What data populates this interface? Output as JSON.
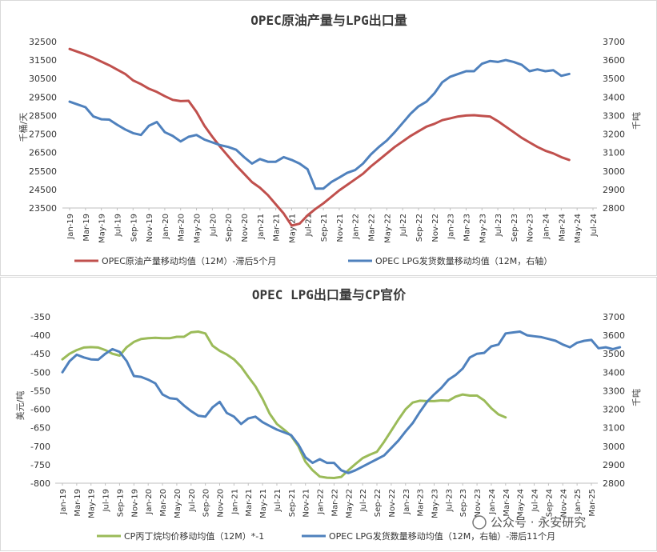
{
  "watermark": "公众号 · 永安研究",
  "chart_data": [
    {
      "type": "line",
      "title": "OPEC原油产量与LPG出口量",
      "ylabel": "千桶/天",
      "y2label": "千吨",
      "ylim": [
        23500,
        32500
      ],
      "y_ticks": [
        23500,
        24500,
        25500,
        26500,
        27500,
        28500,
        29500,
        30500,
        31500,
        32500
      ],
      "y2lim": [
        2800,
        3700
      ],
      "y2_ticks": [
        2800,
        2900,
        3000,
        3100,
        3200,
        3300,
        3400,
        3500,
        3600,
        3700
      ],
      "x_ticks": [
        "Jan-19",
        "Mar-19",
        "May-19",
        "Jul-19",
        "Sep-19",
        "Nov-19",
        "Jan-20",
        "Mar-20",
        "May-20",
        "Jul-20",
        "Sep-20",
        "Nov-20",
        "Jan-21",
        "Mar-21",
        "May-21",
        "Jul-21",
        "Sep-21",
        "Nov-21",
        "Jan-22",
        "Mar-22",
        "May-22",
        "Jul-22",
        "Sep-22",
        "Nov-22",
        "Jan-23",
        "Mar-23",
        "May-23",
        "Jul-23",
        "Sep-23",
        "Nov-23",
        "Jan-24",
        "Mar-24",
        "May-24",
        "Jul-24"
      ],
      "grid": false,
      "legend_position": "bottom",
      "series": [
        {
          "name": "OPEC原油产量移动均值（12M）-滞后5个月",
          "color": "#c0504d",
          "axis": "left",
          "start_index": 0,
          "values": [
            32100,
            31950,
            31800,
            31620,
            31420,
            31220,
            30980,
            30750,
            30400,
            30200,
            29950,
            29780,
            29550,
            29350,
            29280,
            29300,
            28700,
            27950,
            27350,
            26800,
            26300,
            25800,
            25350,
            24900,
            24600,
            24200,
            23700,
            23200,
            22550,
            22650,
            23100,
            23450,
            23750,
            24100,
            24450,
            24750,
            25050,
            25350,
            25750,
            26100,
            26450,
            26800,
            27100,
            27400,
            27650,
            27900,
            28050,
            28250,
            28350,
            28450,
            28500,
            28520,
            28480,
            28450,
            28200,
            27900,
            27600,
            27300,
            27050,
            26800,
            26600,
            26450,
            26250,
            26100
          ]
        },
        {
          "name": "OPEC LPG发货数量移动均值（12M，右轴）",
          "color": "#4f81bd",
          "axis": "right",
          "start_index": 0,
          "values": [
            3375,
            3360,
            3345,
            3295,
            3280,
            3278,
            3250,
            3225,
            3205,
            3195,
            3245,
            3265,
            3210,
            3190,
            3160,
            3185,
            3195,
            3170,
            3155,
            3140,
            3130,
            3115,
            3075,
            3040,
            3065,
            3050,
            3050,
            3075,
            3060,
            3040,
            3010,
            2905,
            2905,
            2940,
            2965,
            2990,
            3005,
            3040,
            3090,
            3130,
            3165,
            3210,
            3260,
            3310,
            3350,
            3375,
            3420,
            3480,
            3510,
            3525,
            3540,
            3540,
            3580,
            3595,
            3590,
            3600,
            3590,
            3575,
            3540,
            3550,
            3540,
            3545,
            3515,
            3525
          ]
        }
      ]
    },
    {
      "type": "line",
      "title": "OPEC LPG出口量与CP官价",
      "ylabel": "美元/吨",
      "y2label": "千吨",
      "ylim": [
        -800,
        -350
      ],
      "y_ticks": [
        -800,
        -750,
        -700,
        -650,
        -600,
        -550,
        -500,
        -450,
        -400,
        -350
      ],
      "y2lim": [
        2800,
        3700
      ],
      "y2_ticks": [
        2800,
        2900,
        3000,
        3100,
        3200,
        3300,
        3400,
        3500,
        3600,
        3700
      ],
      "x_ticks": [
        "Jan-19",
        "Mar-19",
        "May-19",
        "Jul-19",
        "Sep-19",
        "Nov-19",
        "Jan-20",
        "Mar-20",
        "May-20",
        "Jul-20",
        "Sep-20",
        "Nov-20",
        "Jan-21",
        "Mar-21",
        "May-21",
        "Jul-21",
        "Sep-21",
        "Nov-21",
        "Jan-22",
        "Mar-22",
        "May-22",
        "Jul-22",
        "Sep-22",
        "Nov-22",
        "Jan-23",
        "Mar-23",
        "May-23",
        "Jul-23",
        "Sep-23",
        "Nov-23",
        "Jan-24",
        "Mar-24",
        "May-24",
        "Jul-24",
        "Sep-24",
        "Nov-24",
        "Jan-25",
        "Mar-25"
      ],
      "grid": false,
      "legend_position": "bottom",
      "series": [
        {
          "name": "CP丙丁烷均价移动均值（12M）*-1",
          "color": "#9bbb59",
          "axis": "left",
          "start_index": 0,
          "values": [
            -465,
            -450,
            -440,
            -433,
            -432,
            -433,
            -440,
            -450,
            -455,
            -432,
            -418,
            -410,
            -408,
            -407,
            -408,
            -408,
            -404,
            -404,
            -392,
            -390,
            -395,
            -428,
            -442,
            -452,
            -465,
            -485,
            -512,
            -538,
            -572,
            -612,
            -640,
            -655,
            -672,
            -700,
            -742,
            -765,
            -782,
            -785,
            -786,
            -783,
            -765,
            -748,
            -732,
            -723,
            -715,
            -688,
            -658,
            -628,
            -600,
            -582,
            -577,
            -578,
            -578,
            -576,
            -577,
            -566,
            -560,
            -563,
            -563,
            -576,
            -597,
            -614,
            -622
          ]
        },
        {
          "name": "OPEC LPG发货数量移动均值（12M，右轴）-滞后11个月",
          "color": "#4f81bd",
          "axis": "right",
          "start_index": 0,
          "values": [
            3400,
            3460,
            3495,
            3480,
            3470,
            3468,
            3500,
            3525,
            3510,
            3460,
            3380,
            3375,
            3360,
            3340,
            3280,
            3260,
            3255,
            3220,
            3190,
            3165,
            3160,
            3210,
            3240,
            3180,
            3160,
            3120,
            3150,
            3160,
            3130,
            3110,
            3090,
            3075,
            3060,
            3010,
            2940,
            2910,
            2930,
            2910,
            2910,
            2870,
            2855,
            2870,
            2890,
            2910,
            2930,
            2950,
            2990,
            3030,
            3080,
            3125,
            3185,
            3240,
            3280,
            3315,
            3360,
            3385,
            3420,
            3480,
            3500,
            3505,
            3540,
            3550,
            3610,
            3615,
            3620,
            3600,
            3595,
            3590,
            3580,
            3570,
            3550,
            3535,
            3560,
            3570,
            3575,
            3530,
            3535,
            3525,
            3535
          ]
        }
      ]
    }
  ]
}
